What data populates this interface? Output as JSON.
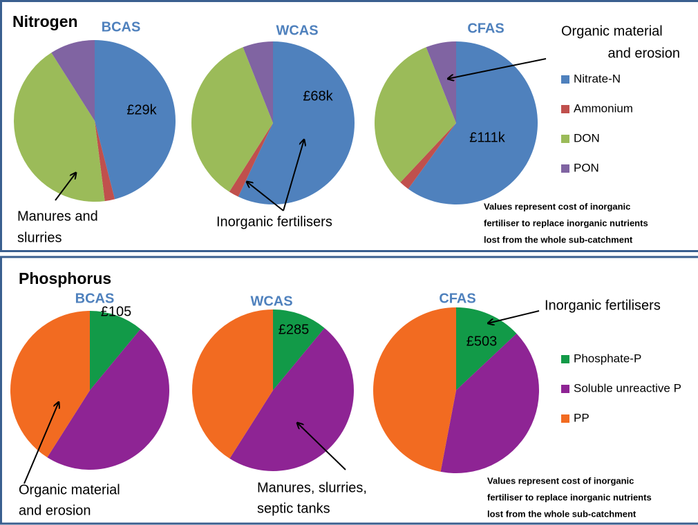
{
  "chart_data": [
    {
      "type": "pie",
      "title": "Nitrogen",
      "categories": [
        "Nitrate-N",
        "Ammonium",
        "DON",
        "PON"
      ],
      "colors": [
        "#4f81bd",
        "#c0504d",
        "#9bbb59",
        "#8064a2"
      ],
      "pies": [
        {
          "title": "BCAS",
          "values": [
            46,
            2,
            43,
            9
          ],
          "label": "£29k"
        },
        {
          "title": "WCAS",
          "values": [
            57,
            2,
            35,
            6
          ],
          "label": "£68k"
        },
        {
          "title": "CFAS",
          "values": [
            60,
            2,
            32,
            6
          ],
          "label": "£111k"
        }
      ],
      "annotations": [
        {
          "text": [
            "Organic material",
            "and erosion"
          ]
        },
        {
          "text": [
            "Manures and",
            "slurries"
          ]
        },
        {
          "text": [
            "Inorganic fertilisers"
          ]
        }
      ],
      "note": [
        "Values represent cost of inorganic",
        "fertiliser to replace inorganic nutrients",
        "lost from the whole sub-catchment"
      ]
    },
    {
      "type": "pie",
      "title": "Phosphorus",
      "categories": [
        "Phosphate-P",
        "Soluble unreactive P",
        "PP"
      ],
      "colors": [
        "#129a48",
        "#8e2494",
        "#f26b21"
      ],
      "pies": [
        {
          "title": "BCAS",
          "values": [
            11,
            48,
            41
          ],
          "label": "£105"
        },
        {
          "title": "WCAS",
          "values": [
            11,
            48,
            41
          ],
          "label": "£285"
        },
        {
          "title": "CFAS",
          "values": [
            13,
            40,
            47
          ],
          "label": "£503"
        }
      ],
      "annotations": [
        {
          "text": [
            "Inorganic fertilisers"
          ]
        },
        {
          "text": [
            "Organic material",
            "and erosion"
          ]
        },
        {
          "text": [
            "Manures, slurries,",
            "septic tanks"
          ]
        }
      ],
      "note": [
        "Values represent cost of inorganic",
        "fertiliser to replace inorganic nutrients",
        "lost from the whole sub-catchment"
      ]
    }
  ]
}
